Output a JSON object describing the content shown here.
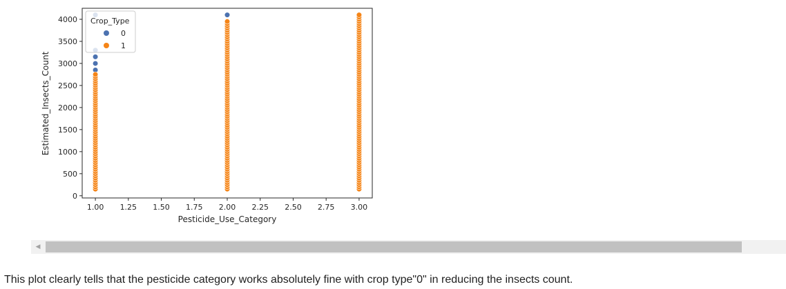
{
  "chart_data": {
    "type": "scatter",
    "xlabel": "Pesticide_Use_Category",
    "ylabel": "Estimated_Insects_Count",
    "xlim": [
      0.9,
      3.1
    ],
    "ylim": [
      -50,
      4250
    ],
    "x_ticks": [
      1.0,
      1.25,
      1.5,
      1.75,
      2.0,
      2.25,
      2.5,
      2.75,
      3.0
    ],
    "x_tick_labels": [
      "1.00",
      "1.25",
      "1.50",
      "1.75",
      "2.00",
      "2.25",
      "2.50",
      "2.75",
      "3.00"
    ],
    "y_ticks": [
      0,
      500,
      1000,
      1500,
      2000,
      2500,
      3000,
      3500,
      4000
    ],
    "y_tick_labels": [
      "0",
      "500",
      "1000",
      "1500",
      "2000",
      "2500",
      "3000",
      "3500",
      "4000"
    ],
    "grid": false,
    "legend": {
      "title": "Crop_Type",
      "placement": "upper left",
      "entries": [
        {
          "label": "0",
          "color": "#4c72b0"
        },
        {
          "label": "1",
          "color": "#f58518"
        }
      ]
    },
    "series": [
      {
        "name": "0",
        "color": "#4c72b0",
        "points": [
          {
            "x": 1,
            "values": [
              150,
              250,
              350,
              450,
              550,
              650,
              750,
              850,
              950,
              1050,
              1150,
              1250,
              1350,
              1450,
              1550,
              1650,
              1750,
              2850,
              3000,
              3150,
              3300,
              4100
            ]
          },
          {
            "x": 2,
            "values": [
              4100
            ]
          }
        ]
      },
      {
        "name": "1",
        "color": "#f58518",
        "points": [
          {
            "x": 1,
            "range": [
              150,
              2750
            ],
            "step": 50
          },
          {
            "x": 2,
            "range": [
              150,
              3950
            ],
            "step": 50
          },
          {
            "x": 3,
            "range": [
              150,
              4100
            ],
            "step": 50
          }
        ]
      }
    ]
  },
  "scrollbar": {
    "left_arrow": "◀"
  },
  "caption": "This plot clearly tells that the pesticide category works absolutely fine with crop type\"0\" in reducing the insects count."
}
